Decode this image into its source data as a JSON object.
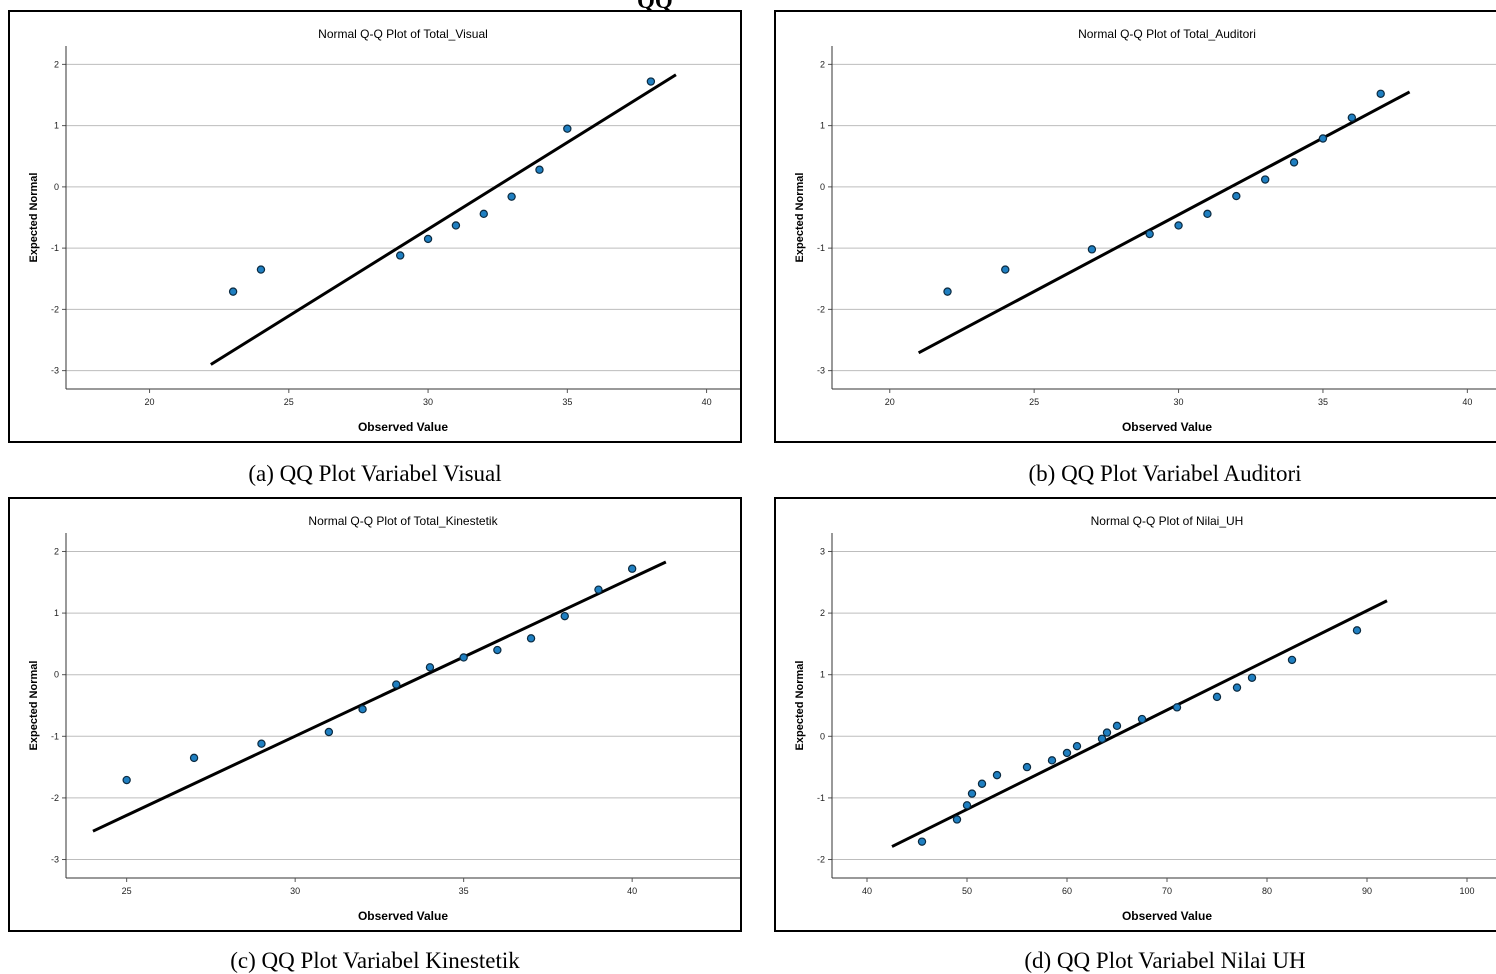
{
  "page": {
    "top_fragment": "QQ",
    "captions": [
      "(a)  QQ Plot Variabel Visual",
      "(b)  QQ Plot Variabel Auditori",
      "(c)  QQ Plot Variabel Kinestetik",
      "(d)  QQ Plot Variabel Nilai UH"
    ]
  },
  "colors": {
    "point_fill": "#1f7fc1",
    "point_stroke": "#0b2a40",
    "line": "#000000",
    "grid": "#bdbdbd"
  },
  "chart_data": [
    {
      "type": "scatter",
      "title": "Normal Q-Q Plot of Total_Visual",
      "xlabel": "Observed Value",
      "ylabel": "Expected Normal",
      "xlim": [
        17,
        41.2
      ],
      "ylim": [
        -3.3,
        2.3
      ],
      "xticks": [
        20,
        25,
        30,
        35,
        40
      ],
      "yticks": [
        2,
        1,
        0,
        -1,
        -2,
        -3
      ],
      "grid": true,
      "points": [
        [
          23,
          -1.71
        ],
        [
          24,
          -1.35
        ],
        [
          29,
          -1.12
        ],
        [
          30,
          -0.85
        ],
        [
          31,
          -0.63
        ],
        [
          32,
          -0.44
        ],
        [
          33,
          -0.16
        ],
        [
          34,
          0.28
        ],
        [
          35,
          0.95
        ],
        [
          38,
          1.72
        ]
      ],
      "ref_line": [
        [
          22.2,
          -2.9
        ],
        [
          38.9,
          1.83
        ]
      ]
    },
    {
      "type": "scatter",
      "title": "Normal Q-Q Plot of Total_Auditori",
      "xlabel": "Observed Value",
      "ylabel": "Expected Normal",
      "xlim": [
        18,
        41.2
      ],
      "ylim": [
        -3.3,
        2.3
      ],
      "xticks": [
        20,
        25,
        30,
        35,
        40
      ],
      "yticks": [
        2,
        1,
        0,
        -1,
        -2,
        -3
      ],
      "grid": true,
      "points": [
        [
          22,
          -1.71
        ],
        [
          24,
          -1.35
        ],
        [
          27,
          -1.02
        ],
        [
          29,
          -0.77
        ],
        [
          30,
          -0.63
        ],
        [
          31,
          -0.44
        ],
        [
          32,
          -0.15
        ],
        [
          33,
          0.12
        ],
        [
          34,
          0.4
        ],
        [
          35,
          0.79
        ],
        [
          36,
          1.13
        ],
        [
          37,
          1.52
        ]
      ],
      "ref_line": [
        [
          21,
          -2.71
        ],
        [
          38,
          1.55
        ]
      ]
    },
    {
      "type": "scatter",
      "title": "Normal Q-Q Plot of Total_Kinestetik",
      "xlabel": "Observed Value",
      "ylabel": "Expected Normal",
      "xlim": [
        23.2,
        43.2
      ],
      "ylim": [
        -3.3,
        2.3
      ],
      "xticks": [
        25,
        30,
        35,
        40
      ],
      "yticks": [
        2,
        1,
        0,
        -1,
        -2,
        -3
      ],
      "grid": true,
      "points": [
        [
          25,
          -1.71
        ],
        [
          27,
          -1.35
        ],
        [
          29,
          -1.12
        ],
        [
          31,
          -0.93
        ],
        [
          32,
          -0.56
        ],
        [
          33,
          -0.16
        ],
        [
          34,
          0.12
        ],
        [
          35,
          0.28
        ],
        [
          36,
          0.4
        ],
        [
          37,
          0.59
        ],
        [
          38,
          0.95
        ],
        [
          39,
          1.38
        ],
        [
          40,
          1.72
        ]
      ],
      "ref_line": [
        [
          24,
          -2.54
        ],
        [
          41,
          1.83
        ]
      ]
    },
    {
      "type": "scatter",
      "title": "Normal Q-Q Plot of Nilai_UH",
      "xlabel": "Observed Value",
      "ylabel": "Expected Normal",
      "xlim": [
        36.5,
        103.5
      ],
      "ylim": [
        -2.3,
        3.3
      ],
      "xticks": [
        40,
        50,
        60,
        70,
        80,
        90,
        100
      ],
      "yticks": [
        3,
        2,
        1,
        0,
        -1,
        -2
      ],
      "grid": true,
      "points": [
        [
          45.5,
          -1.71
        ],
        [
          49,
          -1.35
        ],
        [
          50,
          -1.12
        ],
        [
          50.5,
          -0.93
        ],
        [
          51.5,
          -0.77
        ],
        [
          53,
          -0.63
        ],
        [
          56,
          -0.5
        ],
        [
          58.5,
          -0.39
        ],
        [
          60,
          -0.27
        ],
        [
          61,
          -0.16
        ],
        [
          63.5,
          -0.04
        ],
        [
          64,
          0.06
        ],
        [
          65,
          0.17
        ],
        [
          67.5,
          0.28
        ],
        [
          71,
          0.47
        ],
        [
          75,
          0.64
        ],
        [
          77,
          0.79
        ],
        [
          78.5,
          0.95
        ],
        [
          82.5,
          1.24
        ],
        [
          89,
          1.72
        ]
      ],
      "ref_line": [
        [
          42.5,
          -1.79
        ],
        [
          92,
          2.2
        ]
      ]
    }
  ]
}
